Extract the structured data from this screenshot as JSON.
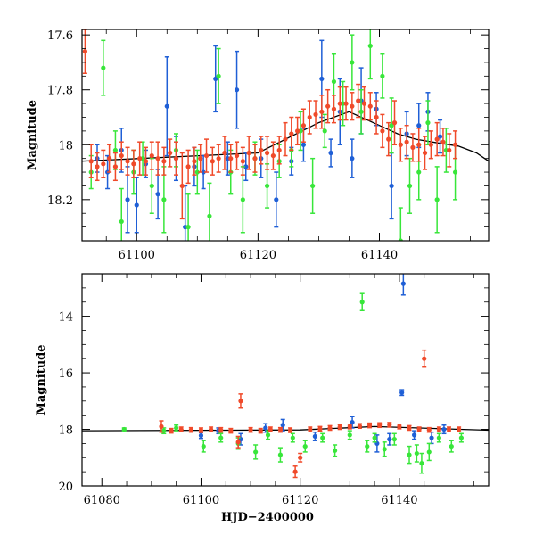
{
  "chart_data": [
    {
      "type": "scatter",
      "panel": "top",
      "title": "",
      "xlabel": "",
      "ylabel": "Magnitude",
      "xlim": [
        61091,
        61158
      ],
      "ylim": [
        18.35,
        17.58
      ],
      "y_inverted": true,
      "xticks": [
        61100,
        61120,
        61140
      ],
      "xtick_labels": [
        "61100",
        "61120",
        "61140"
      ],
      "yticks": [
        17.6,
        17.8,
        18,
        18.2
      ],
      "ytick_labels": [
        "17.6",
        "17.8",
        "18",
        "18.2"
      ],
      "grid": false,
      "model": {
        "x": [
          61091,
          61120,
          61130,
          61135,
          61140,
          61143,
          61146,
          61150,
          61153,
          61156,
          61158
        ],
        "y": [
          18.06,
          18.03,
          17.92,
          17.88,
          17.93,
          17.96,
          17.98,
          17.995,
          18.005,
          18.03,
          18.06
        ]
      },
      "series": [
        {
          "name": "blue",
          "color": "#1f5fd6",
          "x": [
            61093.5,
            61095.2,
            61097.5,
            61098.5,
            61100.0,
            61101.5,
            61103.5,
            61105.0,
            61106.5,
            61108.0,
            61109.5,
            61111.0,
            61113.0,
            61115.0,
            61116.5,
            61118.0,
            61120.5,
            61123.0,
            61125.5,
            61127.5,
            61130.5,
            61132.0,
            61133.5,
            61135.5,
            61137.0,
            61139.5,
            61142.0,
            61144.5,
            61146.5,
            61148.0,
            61150.0
          ],
          "y": [
            18.05,
            18.1,
            18.02,
            18.2,
            18.22,
            18.07,
            18.18,
            17.86,
            18.05,
            18.3,
            18.08,
            18.1,
            17.76,
            18.05,
            17.8,
            18.08,
            18.05,
            18.2,
            18.06,
            18.0,
            17.76,
            18.03,
            17.88,
            18.05,
            17.84,
            17.87,
            18.15,
            17.96,
            17.93,
            17.88,
            17.97
          ],
          "err": [
            0.05,
            0.06,
            0.08,
            0.12,
            0.1,
            0.05,
            0.09,
            0.18,
            0.08,
            0.15,
            0.07,
            0.06,
            0.12,
            0.06,
            0.14,
            0.05,
            0.07,
            0.1,
            0.05,
            0.06,
            0.14,
            0.05,
            0.12,
            0.07,
            0.12,
            0.06,
            0.12,
            0.08,
            0.08,
            0.07,
            0.06
          ]
        },
        {
          "name": "green",
          "color": "#38e63a",
          "x": [
            61092.5,
            61094.5,
            61096.5,
            61097.5,
            61099.5,
            61101.0,
            61102.5,
            61104.5,
            61106.5,
            61108.5,
            61110.0,
            61112.0,
            61113.5,
            61115.5,
            61117.5,
            61119.5,
            61121.5,
            61123.5,
            61125.5,
            61127.0,
            61129.0,
            61131.0,
            61132.5,
            61134.0,
            61135.5,
            61137.0,
            61138.5,
            61140.5,
            61142.0,
            61143.5,
            61145.0,
            61146.5,
            61148.0,
            61149.5,
            61151.0,
            61152.5
          ],
          "y": [
            18.1,
            17.72,
            18.02,
            18.28,
            18.1,
            18.05,
            18.15,
            18.2,
            18.02,
            18.3,
            18.1,
            18.26,
            17.75,
            18.1,
            18.2,
            18.05,
            18.15,
            18.06,
            18.02,
            17.95,
            18.15,
            17.95,
            17.77,
            17.85,
            17.7,
            17.88,
            17.64,
            17.75,
            17.93,
            18.35,
            18.15,
            18.1,
            17.92,
            18.2,
            18.02,
            18.1
          ],
          "err": [
            0.06,
            0.1,
            0.07,
            0.12,
            0.08,
            0.06,
            0.1,
            0.12,
            0.06,
            0.12,
            0.08,
            0.12,
            0.1,
            0.08,
            0.12,
            0.06,
            0.08,
            0.06,
            0.06,
            0.07,
            0.1,
            0.06,
            0.1,
            0.08,
            0.1,
            0.08,
            0.12,
            0.08,
            0.1,
            0.12,
            0.1,
            0.1,
            0.08,
            0.12,
            0.08,
            0.1
          ]
        },
        {
          "name": "red",
          "color": "#f04a2a",
          "x": [
            61091.5,
            61092.5,
            61093.5,
            61094.5,
            61095.5,
            61096.5,
            61097.5,
            61098.5,
            61099.5,
            61100.5,
            61101.5,
            61102.5,
            61103.5,
            61104.5,
            61105.5,
            61106.5,
            61107.5,
            61108.5,
            61109.5,
            61110.5,
            61111.5,
            61112.5,
            61113.5,
            61114.5,
            61115.5,
            61116.5,
            61117.5,
            61118.5,
            61119.5,
            61120.5,
            61121.5,
            61122.5,
            61123.5,
            61124.5,
            61125.5,
            61126.5,
            61127.5,
            61128.5,
            61129.5,
            61130.5,
            61131.5,
            61132.5,
            61133.5,
            61134.5,
            61135.5,
            61136.5,
            61137.5,
            61138.5,
            61139.5,
            61140.5,
            61141.5,
            61142.5,
            61143.5,
            61144.5,
            61145.5,
            61146.5,
            61147.5,
            61148.5,
            61149.5,
            61150.5,
            61151.5,
            61152.5
          ],
          "y": [
            17.66,
            18.06,
            18.08,
            18.07,
            18.05,
            18.08,
            18.04,
            18.06,
            18.07,
            18.05,
            18.06,
            18.04,
            18.05,
            18.06,
            18.03,
            18.05,
            18.15,
            18.08,
            18.06,
            18.05,
            18.04,
            18.06,
            18.05,
            18.03,
            18.05,
            18.04,
            18.06,
            18.03,
            18.05,
            18.02,
            18.03,
            18.04,
            18.02,
            17.98,
            17.96,
            17.95,
            17.93,
            17.9,
            17.89,
            17.88,
            17.86,
            17.87,
            17.85,
            17.85,
            17.86,
            17.84,
            17.85,
            17.86,
            17.9,
            17.95,
            17.98,
            17.92,
            18.0,
            17.99,
            18.01,
            18.0,
            18.03,
            18.0,
            17.98,
            17.99,
            18.02,
            18.0
          ],
          "err": [
            0.08,
            0.06,
            0.05,
            0.05,
            0.05,
            0.05,
            0.05,
            0.05,
            0.05,
            0.06,
            0.05,
            0.05,
            0.06,
            0.05,
            0.05,
            0.06,
            0.12,
            0.06,
            0.05,
            0.05,
            0.06,
            0.05,
            0.05,
            0.06,
            0.05,
            0.05,
            0.05,
            0.06,
            0.05,
            0.05,
            0.06,
            0.05,
            0.05,
            0.06,
            0.06,
            0.05,
            0.06,
            0.06,
            0.05,
            0.06,
            0.06,
            0.05,
            0.06,
            0.06,
            0.05,
            0.06,
            0.06,
            0.05,
            0.06,
            0.06,
            0.06,
            0.08,
            0.06,
            0.06,
            0.05,
            0.06,
            0.06,
            0.05,
            0.06,
            0.05,
            0.06,
            0.05
          ]
        }
      ]
    },
    {
      "type": "scatter",
      "panel": "bottom",
      "title": "",
      "xlabel": "HJD−2400000",
      "ylabel": "Magnitude",
      "xlim": [
        61076,
        61158
      ],
      "ylim": [
        20,
        12.5
      ],
      "y_inverted": true,
      "xticks": [
        61080,
        61100,
        61120,
        61140
      ],
      "xtick_labels": [
        "61080",
        "61100",
        "61120",
        "61140"
      ],
      "yticks": [
        14,
        16,
        18,
        20
      ],
      "ytick_labels": [
        "14",
        "16",
        "18",
        "20"
      ],
      "grid": false,
      "model": {
        "x": [
          61076,
          61120,
          61135,
          61158
        ],
        "y": [
          18.05,
          18.02,
          17.9,
          18.03
        ]
      },
      "series": [
        {
          "name": "blue",
          "color": "#1f5fd6",
          "x": [
            61100.0,
            61103.5,
            61108.0,
            61113.0,
            61116.5,
            61123.0,
            61130.5,
            61135.5,
            61138.0,
            61140.5,
            61140.8,
            61143.0,
            61146.5,
            61149.0
          ],
          "y": [
            18.22,
            18.05,
            18.35,
            17.95,
            17.85,
            18.25,
            17.75,
            18.5,
            18.35,
            16.7,
            12.85,
            18.2,
            18.3,
            18.0
          ],
          "err": [
            0.1,
            0.1,
            0.2,
            0.15,
            0.2,
            0.15,
            0.2,
            0.3,
            0.2,
            0.1,
            0.4,
            0.15,
            0.2,
            0.15
          ]
        },
        {
          "name": "green",
          "color": "#38e63a",
          "x": [
            61084.5,
            61092.5,
            61095.0,
            61100.5,
            61104.0,
            61107.5,
            61111.0,
            61113.5,
            61116.0,
            61118.5,
            61121.0,
            61124.5,
            61127.0,
            61130.0,
            61132.5,
            61133.5,
            61135.0,
            61137.0,
            61139.0,
            61142.0,
            61143.5,
            61144.5,
            61146.0,
            61148.0,
            61150.5,
            61152.5
          ],
          "y": [
            18.0,
            18.05,
            17.95,
            18.6,
            18.3,
            18.5,
            18.8,
            18.2,
            18.9,
            18.3,
            18.6,
            18.3,
            18.75,
            18.2,
            13.5,
            18.6,
            18.3,
            18.7,
            18.35,
            18.9,
            18.85,
            19.2,
            18.8,
            18.3,
            18.6,
            18.3
          ],
          "err": [
            0.05,
            0.1,
            0.1,
            0.2,
            0.15,
            0.2,
            0.25,
            0.15,
            0.25,
            0.15,
            0.2,
            0.15,
            0.2,
            0.15,
            0.3,
            0.2,
            0.15,
            0.25,
            0.2,
            0.3,
            0.3,
            0.35,
            0.3,
            0.15,
            0.2,
            0.15
          ]
        },
        {
          "name": "red",
          "color": "#f04a2a",
          "x": [
            61092.0,
            61094.0,
            61096.0,
            61098.0,
            61100.0,
            61102.0,
            61104.0,
            61106.0,
            61107.5,
            61108.0,
            61110.0,
            61112.0,
            61114.0,
            61116.0,
            61118.0,
            61119.0,
            61120.0,
            61122.0,
            61124.0,
            61126.0,
            61128.0,
            61130.0,
            61132.0,
            61134.0,
            61136.0,
            61138.0,
            61140.0,
            61142.0,
            61144.0,
            61145.0,
            61146.0,
            61148.0,
            61150.0,
            61152.0
          ],
          "y": [
            17.9,
            18.05,
            18.0,
            18.02,
            18.03,
            18.0,
            18.02,
            18.05,
            18.45,
            17.0,
            18.02,
            18.05,
            18.0,
            18.02,
            18.03,
            19.5,
            19.0,
            18.0,
            17.98,
            17.95,
            17.92,
            17.9,
            17.88,
            17.86,
            17.85,
            17.84,
            17.9,
            17.95,
            18.0,
            15.5,
            18.02,
            18.0,
            18.0,
            18.0
          ],
          "err": [
            0.2,
            0.08,
            0.08,
            0.08,
            0.08,
            0.08,
            0.08,
            0.08,
            0.2,
            0.25,
            0.08,
            0.08,
            0.08,
            0.08,
            0.08,
            0.2,
            0.15,
            0.08,
            0.08,
            0.08,
            0.08,
            0.08,
            0.08,
            0.08,
            0.08,
            0.08,
            0.08,
            0.08,
            0.08,
            0.3,
            0.08,
            0.08,
            0.08,
            0.08
          ]
        }
      ]
    }
  ]
}
